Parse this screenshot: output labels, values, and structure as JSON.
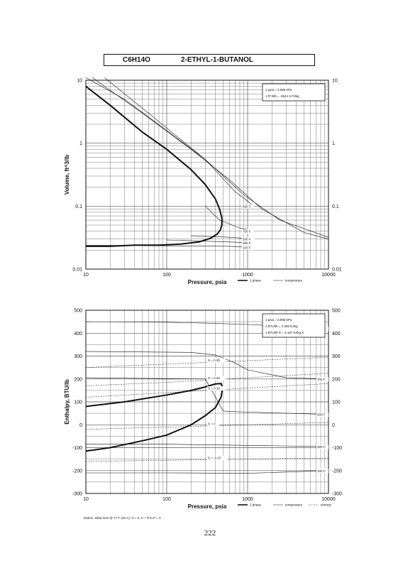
{
  "header": {
    "formula": "C6H14O",
    "name": "2-ETHYL-1-BUTANOL"
  },
  "page_number": "222",
  "chart_data": [
    {
      "type": "line",
      "xscale": "log",
      "yscale": "log",
      "xlim": [
        10,
        10000
      ],
      "ylim": [
        0.01,
        10
      ],
      "xlabel": "Pressure, psia",
      "ylabel": "Volume, ft^3/lb",
      "x_ticks": [
        "10",
        "100",
        "1000",
        "10000"
      ],
      "y_ticks": [
        "0.01",
        "0.1",
        "1",
        "10"
      ],
      "grid": true,
      "conversions": [
        "1 psia = 6.895 kPa",
        "1 ft^3/lb = .0624 m^3/kg"
      ],
      "legend": [
        "2 phase",
        "temperature"
      ],
      "series": [
        {
          "style": "2phase",
          "x": [
            10,
            20,
            50,
            100,
            200,
            300,
            400,
            450,
            480,
            480,
            460,
            420,
            350,
            250,
            150,
            80,
            40,
            20,
            10
          ],
          "y": [
            8,
            4,
            1.5,
            0.8,
            0.38,
            0.22,
            0.13,
            0.09,
            0.065,
            0.05,
            0.042,
            0.036,
            0.031,
            0.027,
            0.025,
            0.024,
            0.024,
            0.023,
            0.023
          ]
        },
        {
          "style": "temperature",
          "label": "900 F",
          "x": [
            10,
            30,
            100,
            300,
            700,
            1200
          ],
          "y": [
            11,
            5,
            1.6,
            0.55,
            0.17,
            0.1
          ]
        },
        {
          "style": "temperature",
          "label": "",
          "x": [
            12,
            50,
            200,
            600,
            1500,
            5000,
            10000
          ],
          "y": [
            11,
            3,
            0.8,
            0.26,
            0.09,
            0.038,
            0.03
          ]
        },
        {
          "style": "temperature",
          "label": "",
          "x": [
            17,
            80,
            300,
            900,
            2500,
            10000
          ],
          "y": [
            11,
            2.2,
            0.55,
            0.15,
            0.06,
            0.032
          ]
        },
        {
          "style": "temperature",
          "label": "700 F",
          "x": [
            300,
            450,
            800,
            1200
          ],
          "y": [
            0.1,
            0.06,
            0.045,
            0.04
          ]
        },
        {
          "style": "temperature",
          "label": "500 F",
          "x": [
            200,
            600,
            1200
          ],
          "y": [
            0.034,
            0.032,
            0.03
          ]
        },
        {
          "style": "temperature",
          "label": "300 F",
          "x": [
            100,
            600,
            1200
          ],
          "y": [
            0.029,
            0.027,
            0.026
          ]
        },
        {
          "style": "temperature",
          "label": "100 F",
          "x": [
            10,
            600,
            1200
          ],
          "y": [
            0.024,
            0.023,
            0.022
          ]
        }
      ]
    },
    {
      "type": "line",
      "xscale": "log",
      "yscale": "linear",
      "xlim": [
        10,
        10000
      ],
      "ylim": [
        -300,
        500
      ],
      "xlabel": "Pressure, psia",
      "ylabel": "Enthalpy, BTU/lb",
      "x_ticks": [
        "10",
        "100",
        "1000",
        "10000"
      ],
      "y_ticks": [
        "-300",
        "-200",
        "-100",
        "0",
        "100",
        "200",
        "300",
        "400",
        "500"
      ],
      "grid": true,
      "conversions": [
        "1 psia = 6.895 kPa",
        "1 BTU/lb = 2.326 kJ/kg",
        "1 BTU/lb R = 4.187 kJ/kg K"
      ],
      "footnote": "Datum: Ideal Gas @ 77 F (25 C), H = 0, S + R ln P = 0",
      "legend": [
        "2 phase",
        "temperature",
        "entropy"
      ],
      "series": [
        {
          "style": "2phase",
          "x": [
            10,
            30,
            100,
            200,
            300,
            400,
            470,
            490,
            470,
            400,
            300,
            200,
            100,
            50,
            20,
            10
          ],
          "y": [
            80,
            100,
            130,
            150,
            165,
            178,
            180,
            160,
            120,
            75,
            40,
            0,
            -45,
            -70,
            -100,
            -115
          ]
        },
        {
          "style": "temperature",
          "label": "900 F",
          "x": [
            10,
            100,
            300,
            1000,
            3000,
            10000
          ],
          "y": [
            450,
            448,
            444,
            438,
            430,
            420
          ]
        },
        {
          "style": "temperature",
          "label": "700 F",
          "x": [
            10,
            200,
            400,
            700,
            1000,
            3000,
            10000
          ],
          "y": [
            320,
            316,
            305,
            270,
            240,
            205,
            200
          ]
        },
        {
          "style": "temperature",
          "label": "500 F",
          "x": [
            10,
            300,
            500,
            1000,
            10000
          ],
          "y": [
            205,
            200,
            60,
            55,
            45
          ]
        },
        {
          "style": "temperature",
          "label": "300 F",
          "x": [
            10,
            100,
            1000,
            10000
          ],
          "y": [
            -85,
            -85,
            -90,
            -95
          ]
        },
        {
          "style": "temperature",
          "label": "100 F",
          "x": [
            10,
            100,
            1000,
            10000
          ],
          "y": [
            -210,
            -210,
            -212,
            -200
          ]
        },
        {
          "style": "entropy",
          "label": "S = 0.30",
          "x": [
            10,
            100,
            1000,
            10000
          ],
          "y": [
            250,
            265,
            280,
            295
          ]
        },
        {
          "style": "entropy",
          "label": "S = 0.20",
          "x": [
            10,
            100,
            1000,
            10000
          ],
          "y": [
            170,
            185,
            205,
            225
          ]
        },
        {
          "style": "entropy",
          "label": "S = 0.10",
          "x": [
            10,
            100,
            1000,
            10000
          ],
          "y": [
            120,
            140,
            160,
            180
          ]
        },
        {
          "style": "entropy",
          "label": "S = 0",
          "x": [
            10,
            100,
            1000,
            10000
          ],
          "y": [
            -20,
            -10,
            0,
            10
          ]
        },
        {
          "style": "entropy",
          "label": "S = -0.10",
          "x": [
            10,
            100,
            1000,
            10000
          ],
          "y": [
            -160,
            -155,
            -150,
            -145
          ]
        }
      ]
    }
  ]
}
